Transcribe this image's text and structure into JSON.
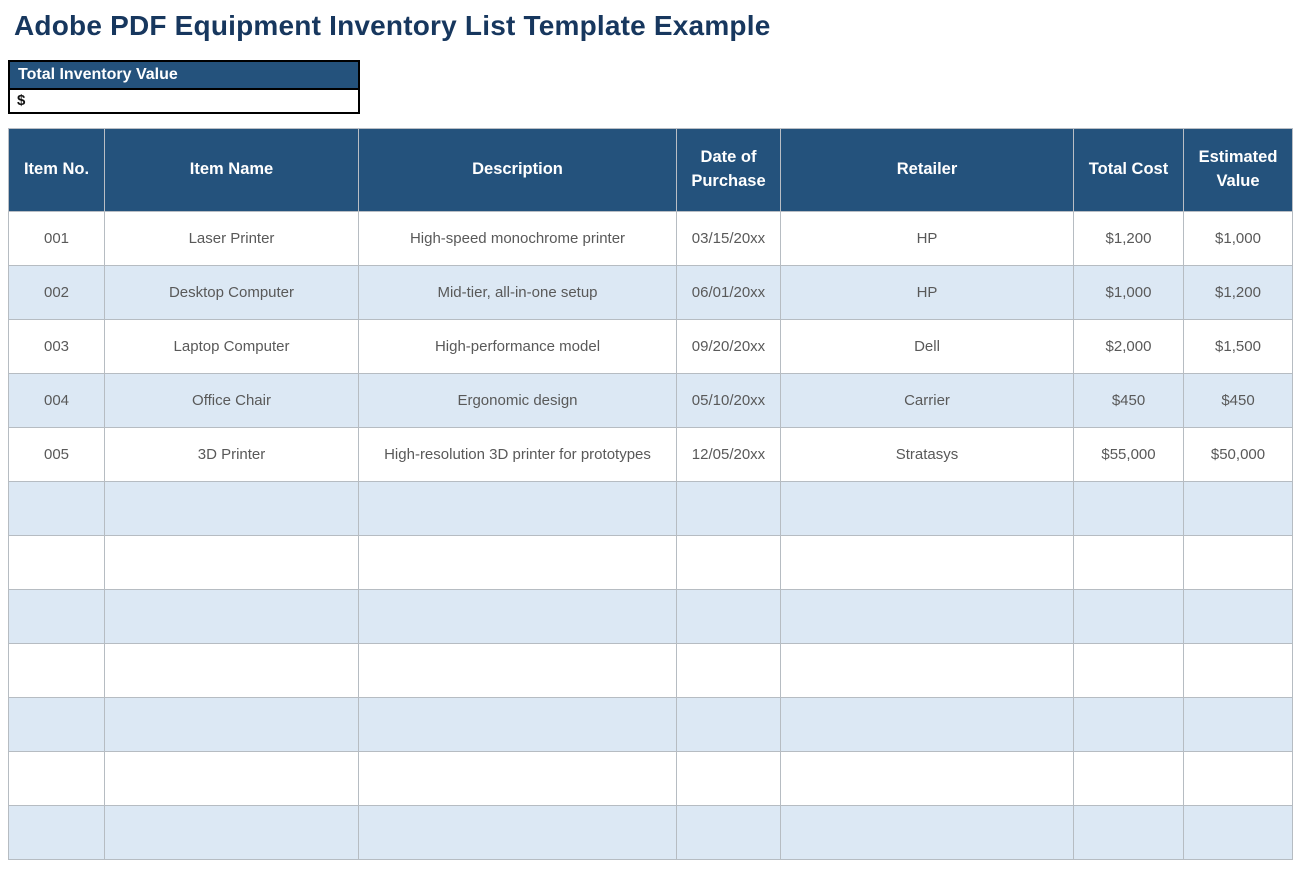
{
  "page": {
    "title": "Adobe PDF Equipment Inventory List Template Example"
  },
  "summary": {
    "label": "Total Inventory Value",
    "value": "$"
  },
  "table": {
    "columns": [
      "Item No.",
      "Item Name",
      "Description",
      "Date of Purchase",
      "Retailer",
      "Total Cost",
      "Estimated Value"
    ],
    "rows": [
      [
        "001",
        "Laser Printer",
        "High-speed monochrome printer",
        "03/15/20xx",
        "HP",
        "$1,200",
        "$1,000"
      ],
      [
        "002",
        "Desktop Computer",
        "Mid-tier, all-in-one setup",
        "06/01/20xx",
        "HP",
        "$1,000",
        "$1,200"
      ],
      [
        "003",
        "Laptop Computer",
        "High-performance model",
        "09/20/20xx",
        "Dell",
        "$2,000",
        "$1,500"
      ],
      [
        "004",
        "Office Chair",
        "Ergonomic design",
        "05/10/20xx",
        "Carrier",
        "$450",
        "$450"
      ],
      [
        "005",
        "3D Printer",
        "High-resolution 3D printer for prototypes",
        "12/05/20xx",
        "Stratasys",
        "$55,000",
        "$50,000"
      ]
    ],
    "empty_row_count": 7
  },
  "colors": {
    "header_bg": "#24527C",
    "title_text": "#17375E",
    "row_alt_bg": "#DCE8F4",
    "grid_border": "#B6BCC2",
    "cell_text": "#595959",
    "header_text": "#FFFFFF"
  }
}
